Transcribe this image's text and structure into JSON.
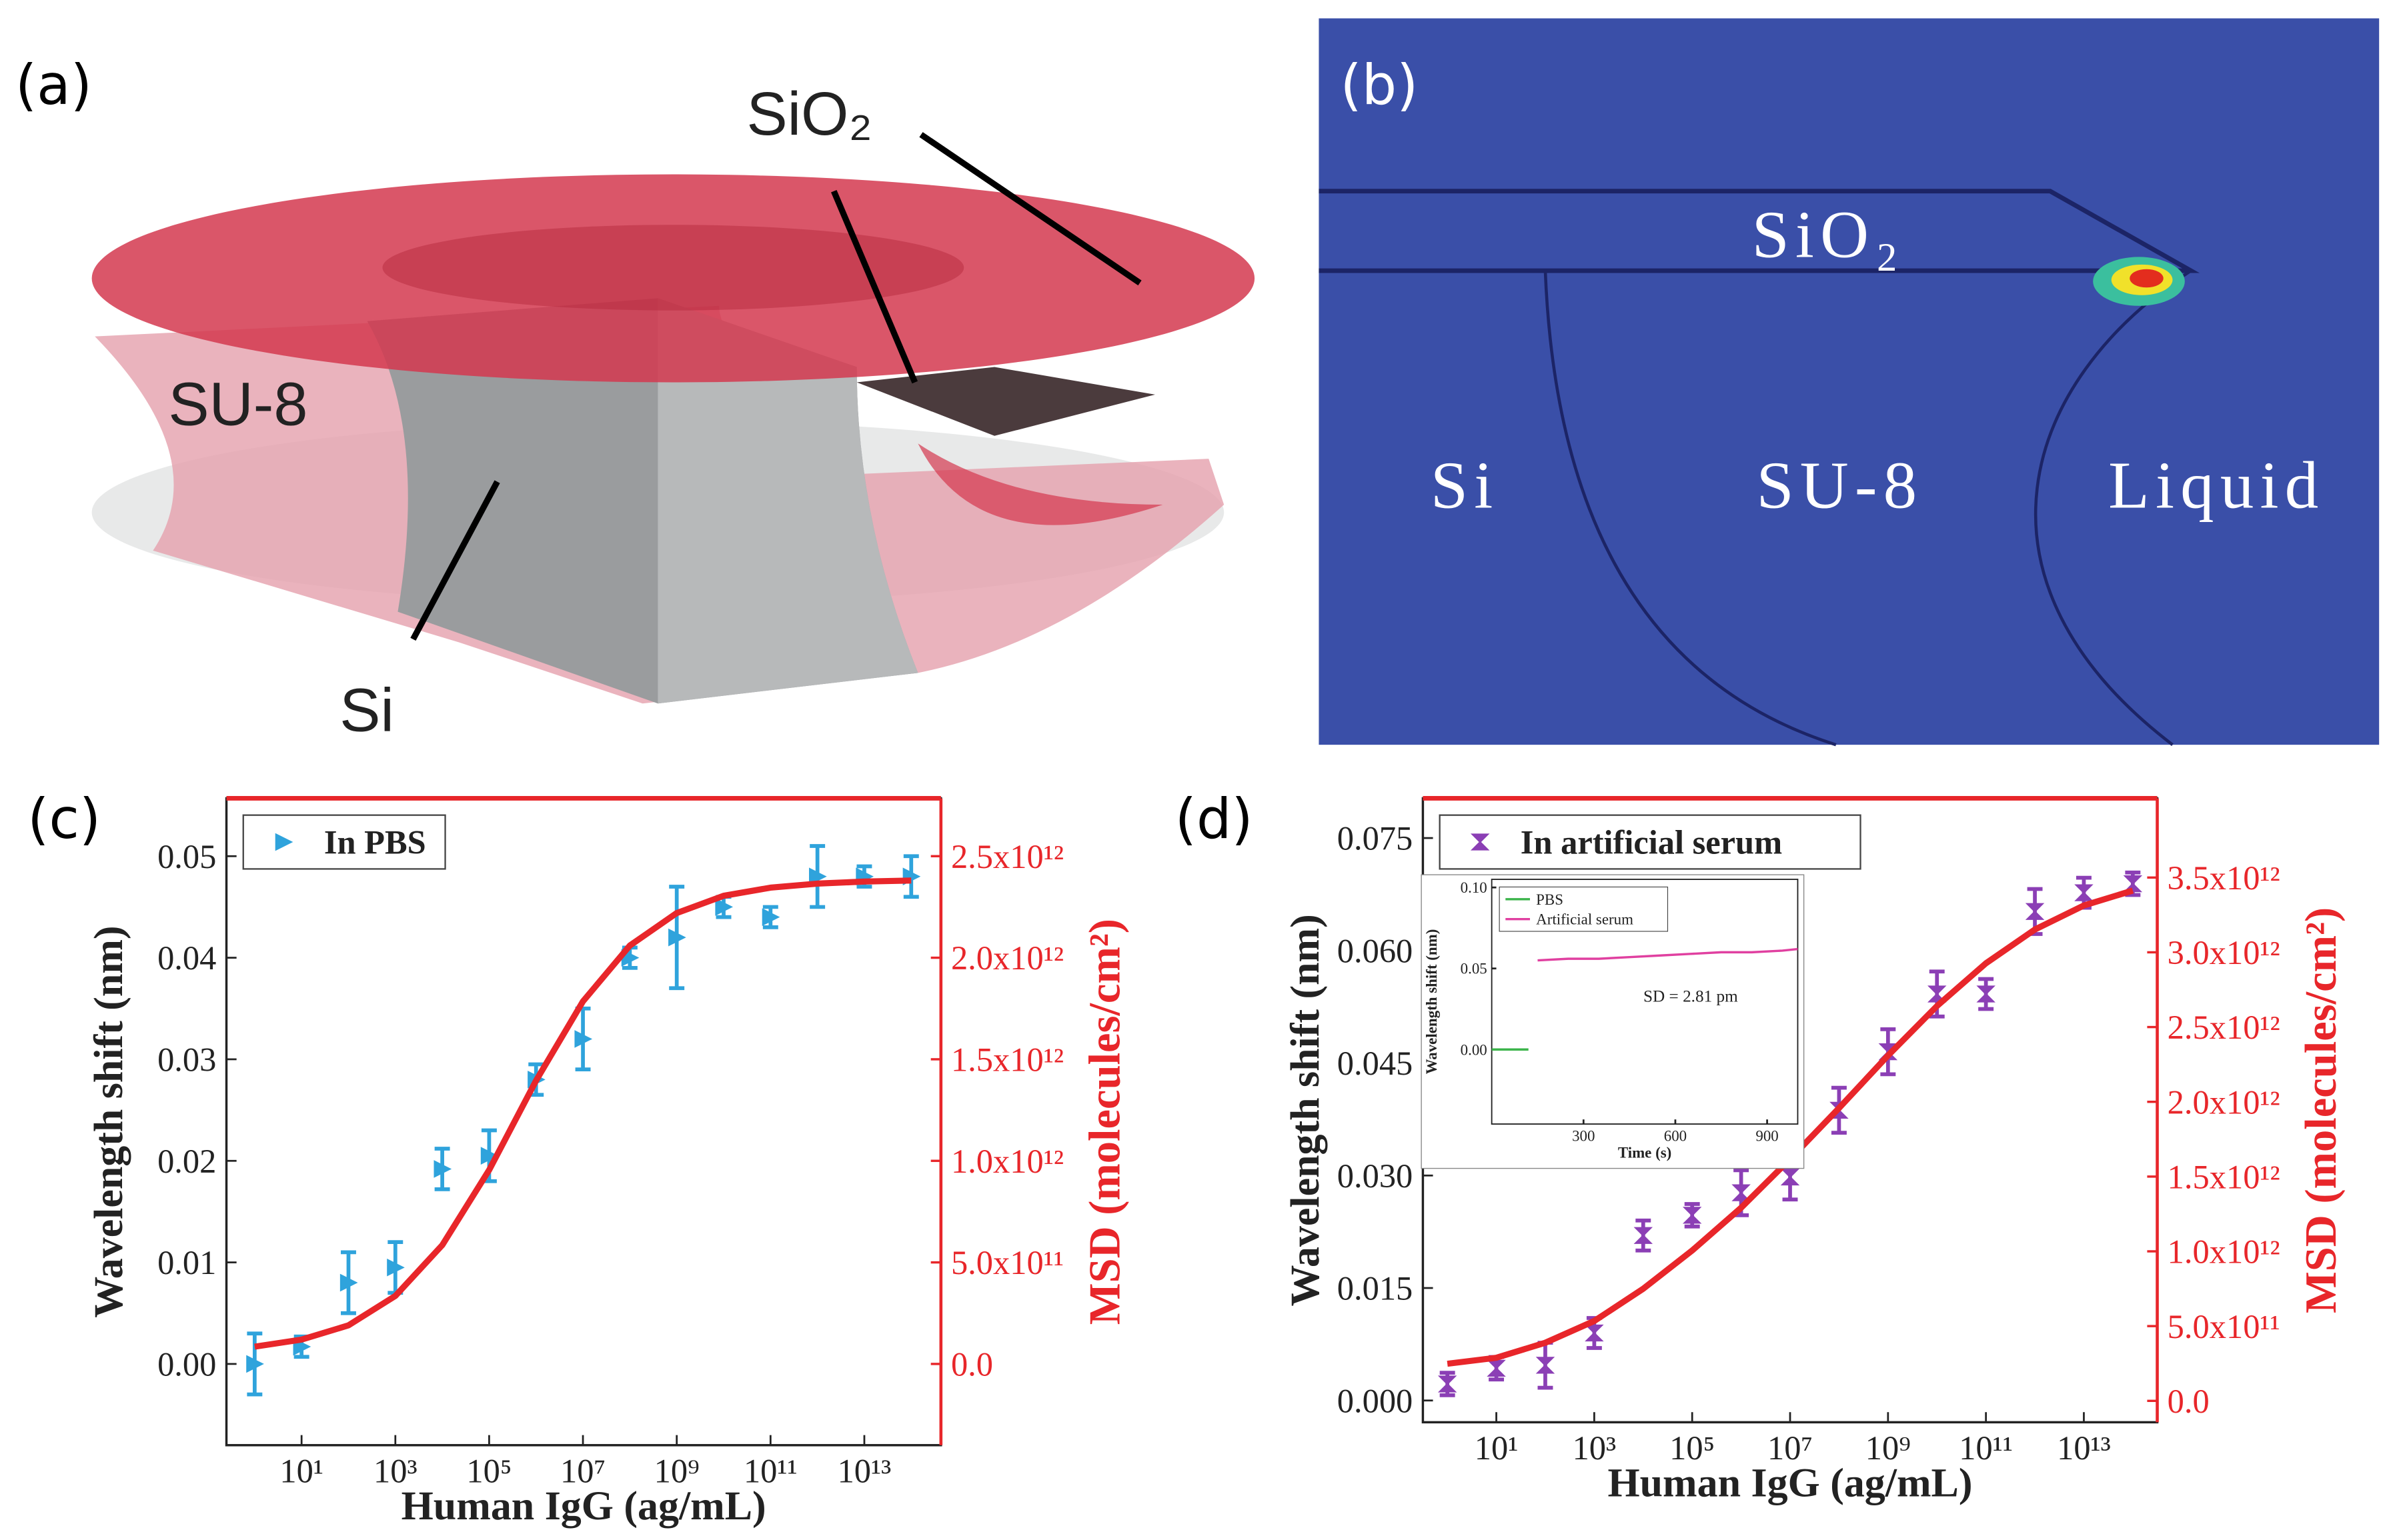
{
  "panel_a": {
    "label": "(a)",
    "labels": {
      "sio2": "SiO₂",
      "su8": "SU-8",
      "si": "Si"
    }
  },
  "panel_b": {
    "label": "(b)",
    "labels": {
      "sio2": "SiO₂",
      "si": "Si",
      "su8": "SU-8",
      "liquid": "Liquid"
    }
  },
  "chart_data": [
    {
      "type": "scatter",
      "panel_label": "(c)",
      "x_label": "Human IgG (ag/mL)",
      "y_label": "Wavelength shift (nm)",
      "y2_label": "MSD (molecules/cm²)",
      "y2_color": "#e8262a",
      "x_scale": "log",
      "legend": "upper left",
      "xlim": [
        0.25,
        430000000000000.0
      ],
      "xticks": [
        {
          "value": 10,
          "label": "10¹"
        },
        {
          "value": 1000,
          "label": "10³"
        },
        {
          "value": 100000,
          "label": "10⁵"
        },
        {
          "value": 10000000.0,
          "label": "10⁷"
        },
        {
          "value": 1000000000.0,
          "label": "10⁹"
        },
        {
          "value": 100000000000.0,
          "label": "10¹¹"
        },
        {
          "value": 10000000000000.0,
          "label": "10¹³"
        }
      ],
      "ylim": [
        -0.008,
        0.0557
      ],
      "yticks": [
        {
          "value": 0,
          "label": "0.00"
        },
        {
          "value": 0.01,
          "label": "0.01"
        },
        {
          "value": 0.02,
          "label": "0.02"
        },
        {
          "value": 0.03,
          "label": "0.03"
        },
        {
          "value": 0.04,
          "label": "0.04"
        },
        {
          "value": 0.05,
          "label": "0.05"
        }
      ],
      "y2lim": [
        -400000000000.0,
        2785000000000.0
      ],
      "y2ticks": [
        {
          "value": 0,
          "label": "0.0"
        },
        {
          "value": 500000000000.0,
          "label": "5.0x10¹¹"
        },
        {
          "value": 1000000000000.0,
          "label": "1.0x10¹²"
        },
        {
          "value": 1500000000000.0,
          "label": "1.5x10¹²"
        },
        {
          "value": 2000000000000.0,
          "label": "2.0x10¹²"
        },
        {
          "value": 2500000000000.0,
          "label": "2.5x10¹²"
        }
      ],
      "x": [
        1,
        10,
        100,
        1000,
        10000,
        100000,
        1000000.0,
        10000000.0,
        100000000.0,
        1000000000.0,
        10000000000.0,
        100000000000.0,
        1000000000000.0,
        10000000000000.0,
        100000000000000.0
      ],
      "series": [
        {
          "name": "In PBS",
          "color": "#2fa3dc",
          "marker": "triangle",
          "values": [
            0.0,
            0.0017,
            0.008,
            0.0095,
            0.0192,
            0.0205,
            0.028,
            0.032,
            0.04,
            0.042,
            0.045,
            0.044,
            0.048,
            0.048,
            0.048
          ],
          "errors": [
            0.003,
            0.001,
            0.003,
            0.0025,
            0.002,
            0.0025,
            0.0015,
            0.003,
            0.001,
            0.005,
            0.001,
            0.001,
            0.003,
            0.001,
            0.002
          ]
        },
        {
          "color": "#e8262a",
          "style": "line",
          "values": [
            0.0017,
            0.0024,
            0.0038,
            0.0067,
            0.0117,
            0.0191,
            0.0279,
            0.0357,
            0.0412,
            0.0444,
            0.0461,
            0.0469,
            0.0473,
            0.0475,
            0.0476
          ]
        }
      ]
    },
    {
      "type": "scatter",
      "panel_label": "(d)",
      "x_label": "Human IgG (ag/mL)",
      "y_label": "Wavelength shift (nm)",
      "y2_label": "MSD (molecules/cm²)",
      "y2_color": "#e8262a",
      "x_scale": "log",
      "legend": "upper left",
      "xlim": [
        0.316,
        316000000000000.0
      ],
      "xticks": [
        {
          "value": 10,
          "label": "10¹"
        },
        {
          "value": 1000,
          "label": "10³"
        },
        {
          "value": 100000,
          "label": "10⁵"
        },
        {
          "value": 10000000.0,
          "label": "10⁷"
        },
        {
          "value": 1000000000.0,
          "label": "10⁹"
        },
        {
          "value": 100000000000.0,
          "label": "10¹¹"
        },
        {
          "value": 10000000000000.0,
          "label": "10¹³"
        }
      ],
      "ylim": [
        -0.0029,
        0.0803
      ],
      "yticks": [
        {
          "value": 0,
          "label": "0.000"
        },
        {
          "value": 0.015,
          "label": "0.015"
        },
        {
          "value": 0.03,
          "label": "0.030"
        },
        {
          "value": 0.045,
          "label": "0.045"
        },
        {
          "value": 0.06,
          "label": "0.060"
        },
        {
          "value": 0.075,
          "label": "0.075"
        }
      ],
      "y2lim": [
        -143000000000.0,
        4030000000000.0
      ],
      "y2ticks": [
        {
          "value": 0,
          "label": "0.0"
        },
        {
          "value": 500000000000.0,
          "label": "5.0x10¹¹"
        },
        {
          "value": 1000000000000.0,
          "label": "1.0x10¹²"
        },
        {
          "value": 1500000000000.0,
          "label": "1.5x10¹²"
        },
        {
          "value": 2000000000000.0,
          "label": "2.0x10¹²"
        },
        {
          "value": 2500000000000.0,
          "label": "2.5x10¹²"
        },
        {
          "value": 3000000000000.0,
          "label": "3.0x10¹²"
        },
        {
          "value": 3500000000000.0,
          "label": "3.5x10¹²"
        }
      ],
      "x": [
        1,
        10,
        100,
        1000,
        10000,
        100000,
        1000000.0,
        10000000.0,
        100000000.0,
        1000000000.0,
        10000000000.0,
        100000000000.0,
        1000000000000.0,
        10000000000000.0,
        100000000000000.0
      ],
      "series": [
        {
          "name": "In artificial serum",
          "color": "#8b3fb5",
          "marker": "hourglass",
          "values": [
            0.0022,
            0.0043,
            0.0047,
            0.009,
            0.022,
            0.0247,
            0.0277,
            0.0298,
            0.0387,
            0.0465,
            0.0542,
            0.0542,
            0.0652,
            0.0677,
            0.0689
          ],
          "errors": [
            0.0015,
            0.0015,
            0.003,
            0.002,
            0.002,
            0.0015,
            0.003,
            0.003,
            0.003,
            0.003,
            0.003,
            0.002,
            0.003,
            0.002,
            0.0015
          ]
        },
        {
          "color": "#e8262a",
          "style": "line",
          "values": [
            0.0049,
            0.0057,
            0.0077,
            0.0106,
            0.0149,
            0.02,
            0.0257,
            0.0322,
            0.039,
            0.046,
            0.0526,
            0.0583,
            0.0628,
            0.066,
            0.068
          ]
        }
      ]
    },
    {
      "type": "line",
      "inset": true,
      "x_label": "Time (s)",
      "y_label": "Wavelength shift (nm)",
      "legend": "upper left",
      "annotation": "SD = 2.81 pm",
      "xlim": [
        0,
        1000
      ],
      "xticks": [
        300,
        600,
        900
      ],
      "ylim": [
        -0.046,
        0.105
      ],
      "yticks": [
        {
          "value": 0,
          "label": "0.00"
        },
        {
          "value": 0.05,
          "label": "0.05"
        },
        {
          "value": 0.1,
          "label": "0.10"
        }
      ],
      "series": [
        {
          "name": "PBS",
          "color": "#3cb44b",
          "x": [
            0,
            30,
            60,
            90,
            120
          ],
          "values": [
            0,
            0,
            0,
            0,
            0
          ]
        },
        {
          "name": "Artificial serum",
          "color": "#e040a0",
          "x": [
            150,
            250,
            350,
            450,
            550,
            650,
            750,
            850,
            950,
            1000
          ],
          "values": [
            0.055,
            0.056,
            0.056,
            0.057,
            0.058,
            0.059,
            0.06,
            0.06,
            0.061,
            0.062
          ]
        }
      ]
    }
  ]
}
